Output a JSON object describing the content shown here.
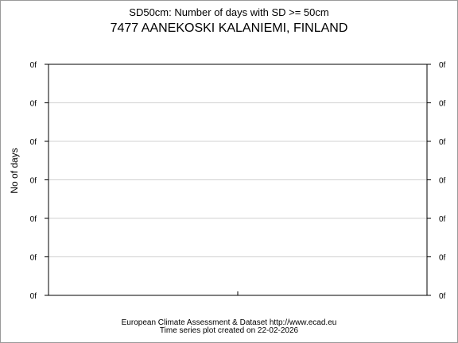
{
  "chart_data": {
    "type": "line",
    "title": "SD50cm: Number of days with SD >= 50cm",
    "subtitle": "7477 AANEKOSKI KALANIEMI, FINLAND",
    "ylabel": "No of days",
    "xlabel": "",
    "y_tick_labels": [
      "0f",
      "0f",
      "0f",
      "0f",
      "0f",
      "0f",
      "0f"
    ],
    "x_tick_count": 1,
    "grid": true,
    "series": []
  },
  "footer": {
    "line1": "European Climate Assessment & Dataset  http://www.ecad.eu",
    "line2": "Time series plot created on 22-02-2026"
  },
  "colors": {
    "grid": "#d0d0d0",
    "axis": "#000000",
    "frame": "#9a9a9a"
  }
}
